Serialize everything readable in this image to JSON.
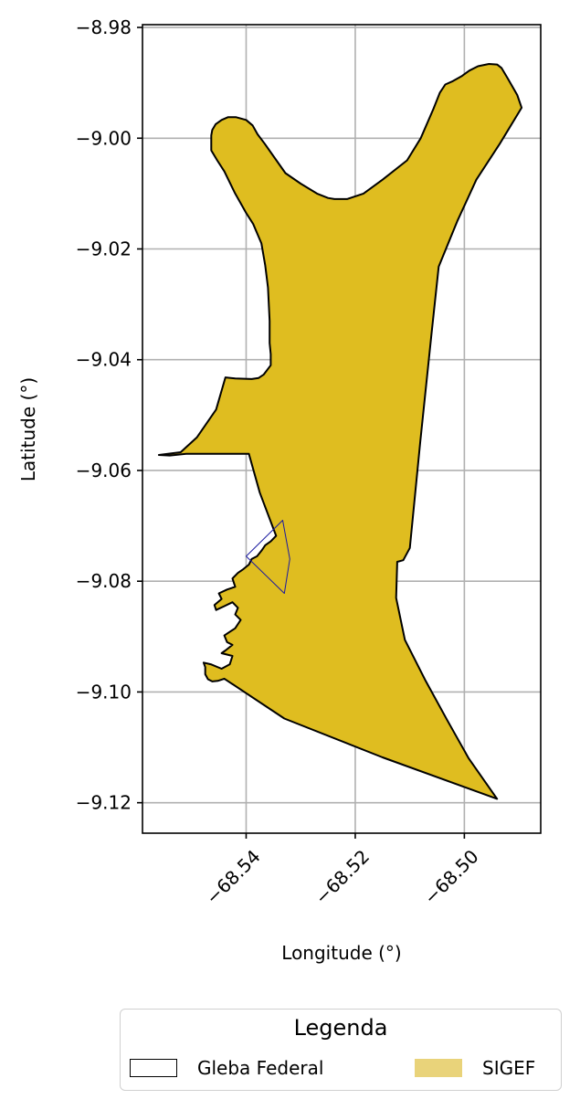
{
  "chart_data": {
    "type": "map",
    "xlabel": "Longitude (°)",
    "ylabel": "Latitude (°)",
    "xlim": [
      -68.559,
      -68.486
    ],
    "ylim": [
      -9.1255,
      -8.9795
    ],
    "xticks": [
      -68.54,
      -68.52,
      -68.5
    ],
    "xtick_labels": [
      "−68.54",
      "−68.52",
      "−68.50"
    ],
    "yticks": [
      -8.98,
      -9.0,
      -9.02,
      -9.04,
      -9.06,
      -9.08,
      -9.1,
      -9.12
    ],
    "ytick_labels": [
      "−8.98",
      "−9.00",
      "−9.02",
      "−9.04",
      "−9.06",
      "−9.08",
      "−9.10",
      "−9.12"
    ],
    "grid": true,
    "layers": [
      {
        "name": "SIGEF",
        "fill": "#DFBD20",
        "edge": "#000000",
        "polygon": [
          [
            -68.5464,
            -9.0022
          ],
          [
            -68.5464,
            -8.9995
          ],
          [
            -68.5462,
            -8.9985
          ],
          [
            -68.5456,
            -8.9975
          ],
          [
            -68.5445,
            -8.9967
          ],
          [
            -68.5433,
            -8.9962
          ],
          [
            -68.5419,
            -8.9962
          ],
          [
            -68.54,
            -8.9967
          ],
          [
            -68.5388,
            -8.9977
          ],
          [
            -68.5379,
            -8.9993
          ],
          [
            -68.5366,
            -9.001
          ],
          [
            -68.5348,
            -9.0035
          ],
          [
            -68.5328,
            -9.0063
          ],
          [
            -68.53,
            -9.0082
          ],
          [
            -68.527,
            -9.01
          ],
          [
            -68.525,
            -9.0108
          ],
          [
            -68.5238,
            -9.011
          ],
          [
            -68.5215,
            -9.011
          ],
          [
            -68.5185,
            -9.01
          ],
          [
            -68.515,
            -9.0075
          ],
          [
            -68.5105,
            -9.004
          ],
          [
            -68.508,
            -9.0
          ],
          [
            -68.5057,
            -8.9948
          ],
          [
            -68.5045,
            -8.9918
          ],
          [
            -68.5035,
            -8.9903
          ],
          [
            -68.5021,
            -8.9897
          ],
          [
            -68.5005,
            -8.9888
          ],
          [
            -68.4991,
            -8.9878
          ],
          [
            -68.4975,
            -8.987
          ],
          [
            -68.4955,
            -8.9866
          ],
          [
            -68.494,
            -8.9867
          ],
          [
            -68.4932,
            -8.9873
          ],
          [
            -68.492,
            -8.9893
          ],
          [
            -68.4903,
            -8.9922
          ],
          [
            -68.4895,
            -8.9945
          ],
          [
            -68.4935,
            -9.001
          ],
          [
            -68.4978,
            -9.0075
          ],
          [
            -68.5013,
            -9.015
          ],
          [
            -68.5047,
            -9.0232
          ],
          [
            -68.5061,
            -9.036
          ],
          [
            -68.5081,
            -9.055
          ],
          [
            -68.51,
            -9.074
          ],
          [
            -68.5112,
            -9.0762
          ],
          [
            -68.5123,
            -9.0765
          ],
          [
            -68.5125,
            -9.083
          ],
          [
            -68.5109,
            -9.0906
          ],
          [
            -68.5072,
            -9.0978
          ],
          [
            -68.5032,
            -9.105
          ],
          [
            -68.4992,
            -9.112
          ],
          [
            -68.494,
            -9.1193
          ],
          [
            -68.515,
            -9.1118
          ],
          [
            -68.533,
            -9.1048
          ],
          [
            -68.544,
            -9.0976
          ],
          [
            -68.5452,
            -9.098
          ],
          [
            -68.5462,
            -9.0981
          ],
          [
            -68.547,
            -9.0977
          ],
          [
            -68.5475,
            -9.0968
          ],
          [
            -68.5475,
            -9.0955
          ],
          [
            -68.5478,
            -9.0947
          ],
          [
            -68.5465,
            -9.095
          ],
          [
            -68.5445,
            -9.0958
          ],
          [
            -68.543,
            -9.095
          ],
          [
            -68.5425,
            -9.0935
          ],
          [
            -68.5445,
            -9.093
          ],
          [
            -68.5438,
            -9.0925
          ],
          [
            -68.5425,
            -9.0915
          ],
          [
            -68.5435,
            -9.091
          ],
          [
            -68.544,
            -9.0898
          ],
          [
            -68.542,
            -9.0885
          ],
          [
            -68.541,
            -9.087
          ],
          [
            -68.542,
            -9.086
          ],
          [
            -68.5415,
            -9.0848
          ],
          [
            -68.5425,
            -9.0838
          ],
          [
            -68.544,
            -9.0845
          ],
          [
            -68.5455,
            -9.0852
          ],
          [
            -68.5458,
            -9.0843
          ],
          [
            -68.5445,
            -9.0832
          ],
          [
            -68.545,
            -9.0822
          ],
          [
            -68.5435,
            -9.0815
          ],
          [
            -68.542,
            -9.081
          ],
          [
            -68.5425,
            -9.0795
          ],
          [
            -68.5415,
            -9.0785
          ],
          [
            -68.5405,
            -9.0778
          ],
          [
            -68.5395,
            -9.077
          ],
          [
            -68.539,
            -9.076
          ],
          [
            -68.538,
            -9.0755
          ],
          [
            -68.5372,
            -9.0745
          ],
          [
            -68.5365,
            -9.0735
          ],
          [
            -68.5355,
            -9.0728
          ],
          [
            -68.5345,
            -9.0718
          ],
          [
            -68.535,
            -9.0705
          ],
          [
            -68.5375,
            -9.064
          ],
          [
            -68.5395,
            -9.057
          ],
          [
            -68.544,
            -9.057
          ],
          [
            -68.551,
            -9.057
          ],
          [
            -68.554,
            -9.0573
          ],
          [
            -68.556,
            -9.0572
          ],
          [
            -68.552,
            -9.0567
          ],
          [
            -68.549,
            -9.054
          ],
          [
            -68.5455,
            -9.049
          ],
          [
            -68.5438,
            -9.0432
          ],
          [
            -68.542,
            -9.0434
          ],
          [
            -68.539,
            -9.0435
          ],
          [
            -68.5377,
            -9.0433
          ],
          [
            -68.5368,
            -9.0427
          ],
          [
            -68.5355,
            -9.041
          ],
          [
            -68.5355,
            -9.039
          ],
          [
            -68.5357,
            -9.037
          ],
          [
            -68.5357,
            -9.033
          ],
          [
            -68.536,
            -9.027
          ],
          [
            -68.5365,
            -9.023
          ],
          [
            -68.5372,
            -9.019
          ],
          [
            -68.5387,
            -9.0155
          ],
          [
            -68.54,
            -9.0135
          ],
          [
            -68.542,
            -9.01
          ],
          [
            -68.544,
            -9.006
          ],
          [
            -68.5453,
            -9.004
          ],
          [
            -68.5464,
            -9.0022
          ]
        ]
      },
      {
        "name": "Gleba Federal",
        "fill": "none",
        "edge": "#000000",
        "polygon": [
          [
            -68.54,
            -9.0755
          ],
          [
            -68.5333,
            -9.069
          ],
          [
            -68.532,
            -9.076
          ],
          [
            -68.533,
            -9.0822
          ],
          [
            -68.54,
            -9.0755
          ]
        ]
      }
    ]
  },
  "legend": {
    "title": "Legenda",
    "items": [
      {
        "label": "Gleba Federal",
        "fill": "none",
        "edge": "#000000"
      },
      {
        "label": "SIGEF",
        "fill": "#E9D37A",
        "edge": "none"
      }
    ]
  }
}
